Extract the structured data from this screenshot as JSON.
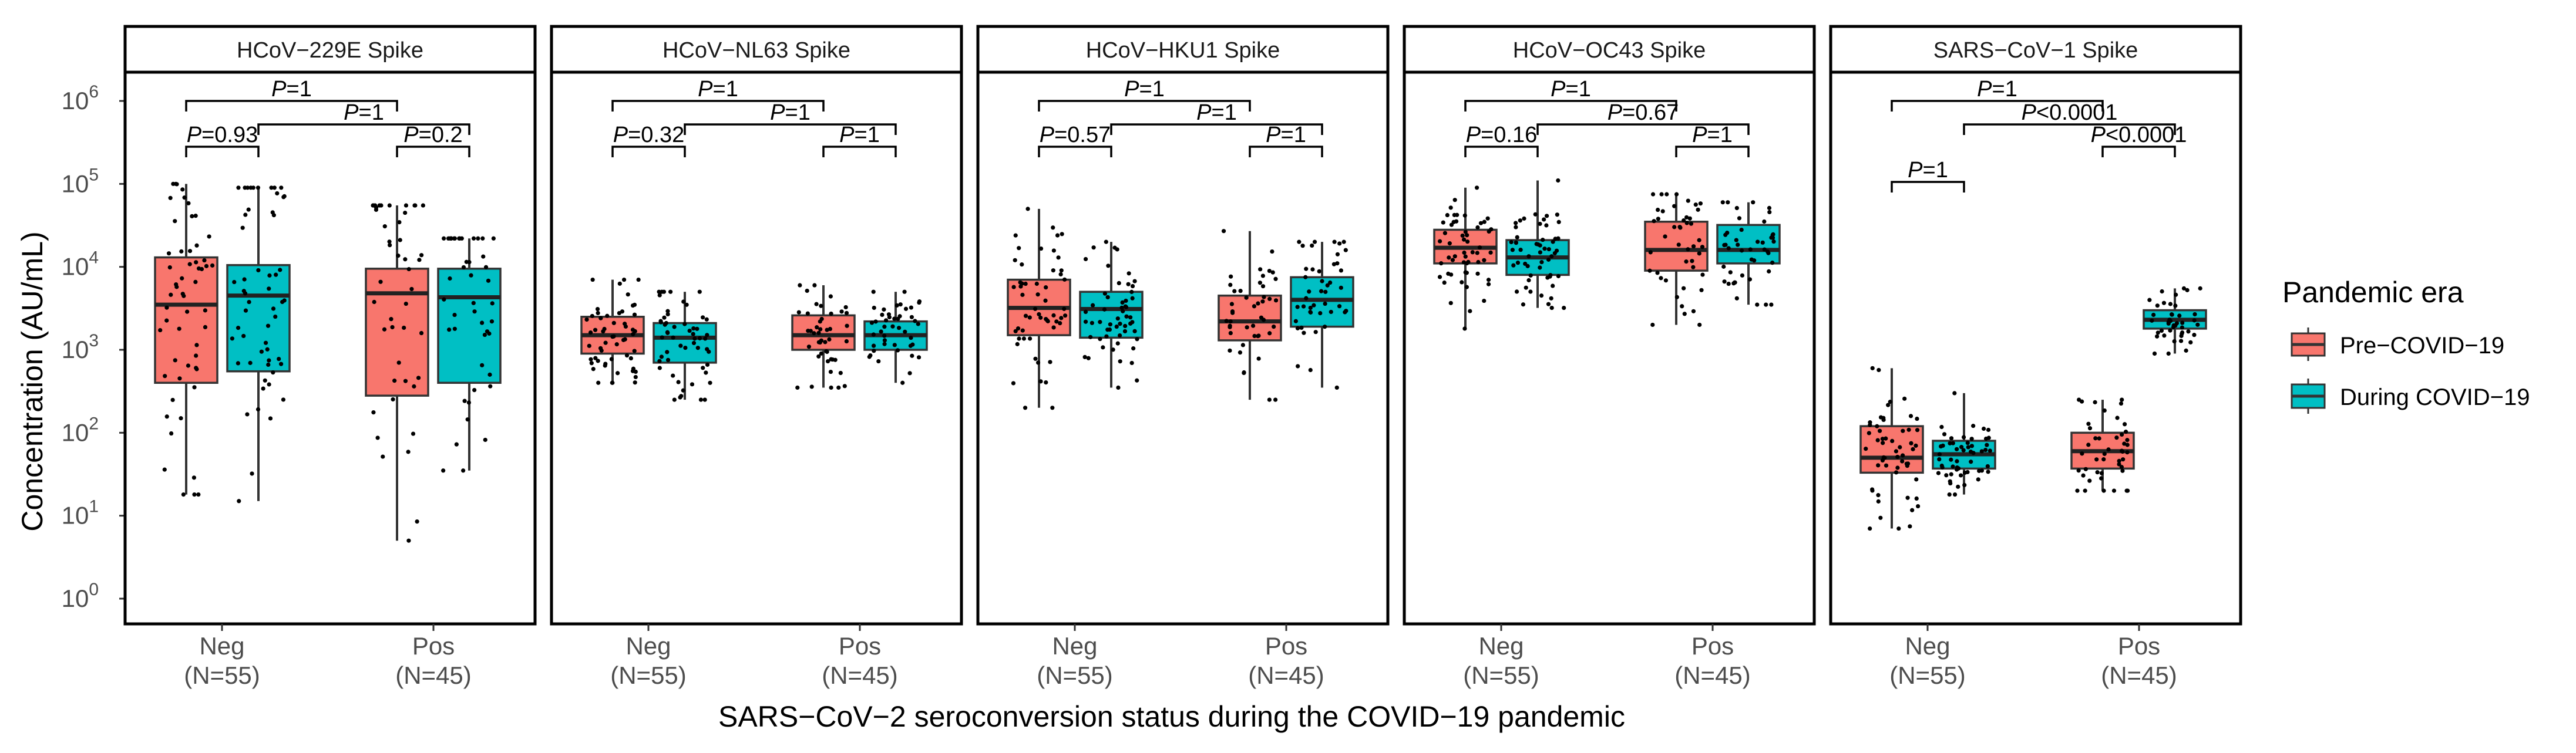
{
  "chart_data": {
    "type": "box",
    "xlabel": "SARS−CoV−2 seroconversion status during the COVID−19 pandemic",
    "ylabel": "Concentration (AU/mL)",
    "yscale": "log10",
    "ylim": [
      1,
      1000000
    ],
    "yticks": [
      {
        "value": 1,
        "base": "10",
        "exp": "0"
      },
      {
        "value": 10,
        "base": "10",
        "exp": "1"
      },
      {
        "value": 100,
        "base": "10",
        "exp": "2"
      },
      {
        "value": 1000,
        "base": "10",
        "exp": "3"
      },
      {
        "value": 10000,
        "base": "10",
        "exp": "4"
      },
      {
        "value": 100000,
        "base": "10",
        "exp": "5"
      },
      {
        "value": 1000000,
        "base": "10",
        "exp": "6"
      }
    ],
    "groups": [
      {
        "label": "Neg",
        "n": "(N=55)"
      },
      {
        "label": "Pos",
        "n": "(N=45)"
      }
    ],
    "legend": {
      "title": "Pandemic era",
      "items": [
        {
          "label": "Pre−COVID−19",
          "color": "#F8766D"
        },
        {
          "label": "During COVID−19",
          "color": "#00BFC4"
        }
      ]
    },
    "panels": [
      {
        "title": "HCoV−229E Spike",
        "boxes": [
          {
            "group": "Neg",
            "era": "Pre−COVID−19",
            "min": 18,
            "q1": 400,
            "median": 3500,
            "q3": 13000,
            "max": 100000,
            "pts": 55
          },
          {
            "group": "Neg",
            "era": "During COVID−19",
            "min": 15,
            "q1": 550,
            "median": 4500,
            "q3": 10500,
            "max": 90000,
            "pts": 55
          },
          {
            "group": "Pos",
            "era": "Pre−COVID−19",
            "min": 5,
            "q1": 280,
            "median": 4800,
            "q3": 9500,
            "max": 55000,
            "pts": 45
          },
          {
            "group": "Pos",
            "era": "During COVID−19",
            "min": 35,
            "q1": 400,
            "median": 4300,
            "q3": 9500,
            "max": 22000,
            "pts": 45
          }
        ],
        "pvalues": [
          {
            "a": 0,
            "b": 2,
            "level": 3,
            "prefix": "P",
            "text": "=1"
          },
          {
            "a": 1,
            "b": 3,
            "level": 2,
            "prefix": "P",
            "text": "=1"
          },
          {
            "a": 0,
            "b": 1,
            "level": 1,
            "prefix": "P",
            "text": "=0.93"
          },
          {
            "a": 2,
            "b": 3,
            "level": 1,
            "prefix": "P",
            "text": "=0.2"
          }
        ]
      },
      {
        "title": "HCoV−NL63 Spike",
        "boxes": [
          {
            "group": "Neg",
            "era": "Pre−COVID−19",
            "min": 400,
            "q1": 900,
            "median": 1500,
            "q3": 2500,
            "max": 7000,
            "pts": 55
          },
          {
            "group": "Neg",
            "era": "During COVID−19",
            "min": 250,
            "q1": 700,
            "median": 1400,
            "q3": 2100,
            "max": 5000,
            "pts": 55
          },
          {
            "group": "Pos",
            "era": "Pre−COVID−19",
            "min": 350,
            "q1": 1000,
            "median": 1500,
            "q3": 2600,
            "max": 6000,
            "pts": 45
          },
          {
            "group": "Pos",
            "era": "During COVID−19",
            "min": 400,
            "q1": 1000,
            "median": 1500,
            "q3": 2200,
            "max": 5000,
            "pts": 45
          }
        ],
        "pvalues": [
          {
            "a": 0,
            "b": 2,
            "level": 3,
            "prefix": "P",
            "text": "=1"
          },
          {
            "a": 1,
            "b": 3,
            "level": 2,
            "prefix": "P",
            "text": "=1"
          },
          {
            "a": 0,
            "b": 1,
            "level": 1,
            "prefix": "P",
            "text": "=0.32"
          },
          {
            "a": 2,
            "b": 3,
            "level": 1,
            "prefix": "P",
            "text": "=1"
          }
        ]
      },
      {
        "title": "HCoV−HKU1 Spike",
        "boxes": [
          {
            "group": "Neg",
            "era": "Pre−COVID−19",
            "min": 200,
            "q1": 1500,
            "median": 3200,
            "q3": 7000,
            "max": 50000,
            "pts": 55
          },
          {
            "group": "Neg",
            "era": "During COVID−19",
            "min": 350,
            "q1": 1400,
            "median": 3100,
            "q3": 5000,
            "max": 20000,
            "pts": 55
          },
          {
            "group": "Pos",
            "era": "Pre−COVID−19",
            "min": 250,
            "q1": 1300,
            "median": 2200,
            "q3": 4500,
            "max": 27000,
            "pts": 45
          },
          {
            "group": "Pos",
            "era": "During COVID−19",
            "min": 350,
            "q1": 1900,
            "median": 4000,
            "q3": 7500,
            "max": 20000,
            "pts": 45
          }
        ],
        "pvalues": [
          {
            "a": 0,
            "b": 2,
            "level": 3,
            "prefix": "P",
            "text": "=1"
          },
          {
            "a": 1,
            "b": 3,
            "level": 2,
            "prefix": "P",
            "text": "=1"
          },
          {
            "a": 0,
            "b": 1,
            "level": 1,
            "prefix": "P",
            "text": "=0.57"
          },
          {
            "a": 2,
            "b": 3,
            "level": 1,
            "prefix": "P",
            "text": "=1"
          }
        ]
      },
      {
        "title": "HCoV−OC43 Spike",
        "boxes": [
          {
            "group": "Neg",
            "era": "Pre−COVID−19",
            "min": 1800,
            "q1": 11000,
            "median": 17000,
            "q3": 28000,
            "max": 90000,
            "pts": 55
          },
          {
            "group": "Neg",
            "era": "During COVID−19",
            "min": 3200,
            "q1": 8000,
            "median": 13000,
            "q3": 21000,
            "max": 110000,
            "pts": 55
          },
          {
            "group": "Pos",
            "era": "Pre−COVID−19",
            "min": 2000,
            "q1": 9000,
            "median": 16000,
            "q3": 35000,
            "max": 75000,
            "pts": 45
          },
          {
            "group": "Pos",
            "era": "During COVID−19",
            "min": 3500,
            "q1": 11000,
            "median": 16000,
            "q3": 32000,
            "max": 60000,
            "pts": 45
          }
        ],
        "pvalues": [
          {
            "a": 0,
            "b": 2,
            "level": 3,
            "prefix": "P",
            "text": "=1"
          },
          {
            "a": 1,
            "b": 3,
            "level": 2,
            "prefix": "P",
            "text": "=0.67"
          },
          {
            "a": 0,
            "b": 1,
            "level": 1,
            "prefix": "P",
            "text": "=0.16"
          },
          {
            "a": 2,
            "b": 3,
            "level": 1,
            "prefix": "P",
            "text": "=1"
          }
        ]
      },
      {
        "title": "SARS−CoV−1 Spike",
        "boxes": [
          {
            "group": "Neg",
            "era": "Pre−COVID−19",
            "min": 7,
            "q1": 33,
            "median": 50,
            "q3": 120,
            "max": 600,
            "pts": 55
          },
          {
            "group": "Neg",
            "era": "During COVID−19",
            "min": 18,
            "q1": 37,
            "median": 55,
            "q3": 80,
            "max": 300,
            "pts": 55
          },
          {
            "group": "Pos",
            "era": "Pre−COVID−19",
            "min": 20,
            "q1": 37,
            "median": 60,
            "q3": 100,
            "max": 250,
            "pts": 45
          },
          {
            "group": "Pos",
            "era": "During COVID−19",
            "min": 900,
            "q1": 1800,
            "median": 2300,
            "q3": 3000,
            "max": 5500,
            "pts": 45
          }
        ],
        "pvalues": [
          {
            "a": 0,
            "b": 2,
            "level": 3,
            "prefix": "P",
            "text": "=1"
          },
          {
            "a": 1,
            "b": 3,
            "level": 2,
            "prefix": "P",
            "text": "<0.0001"
          },
          {
            "a": 0,
            "b": 1,
            "level": 0,
            "prefix": "P",
            "text": "=1"
          },
          {
            "a": 2,
            "b": 3,
            "level": 1,
            "prefix": "P",
            "text": "<0.0001"
          }
        ]
      }
    ]
  }
}
